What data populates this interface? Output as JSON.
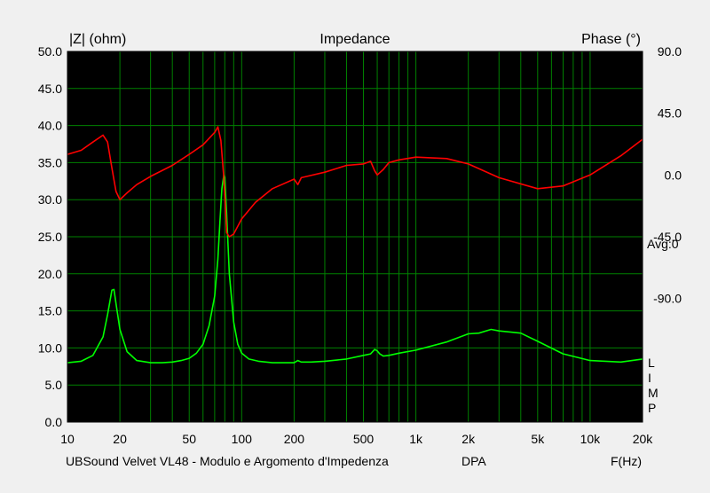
{
  "chart_data": {
    "type": "line",
    "title": "Impedance",
    "y_left_label": "|Z| (ohm)",
    "y_right_label": "Phase (°)",
    "x_label": "F(Hz)",
    "footer_caption": "UBSound Velvet VL48 - Modulo e Argomento d'Impedenza",
    "footer_tag": "DPA",
    "avg_text": "Avg:0",
    "side_letters": [
      "L",
      "I",
      "M",
      "P"
    ],
    "x_scale": "log",
    "xlim": [
      10,
      20000
    ],
    "ylim_left": [
      0,
      50
    ],
    "ylim_right": [
      -180,
      90
    ],
    "x_tick_values": [
      10,
      20,
      50,
      100,
      200,
      500,
      1000,
      2000,
      5000,
      10000,
      20000
    ],
    "x_tick_labels": [
      "10",
      "20",
      "50",
      "100",
      "200",
      "500",
      "1k",
      "2k",
      "5k",
      "10k",
      "20k"
    ],
    "y_left_ticks": [
      0,
      5,
      10,
      15,
      20,
      25,
      30,
      35,
      40,
      45,
      50
    ],
    "y_left_tick_labels": [
      "0.0",
      "5.0",
      "10.0",
      "15.0",
      "20.0",
      "25.0",
      "30.0",
      "35.0",
      "40.0",
      "45.0",
      "50.0"
    ],
    "y_right_ticks": [
      90,
      45,
      0,
      -45,
      -90
    ],
    "y_right_tick_labels": [
      "90.0",
      "45.0",
      "0.0",
      "-45.0",
      "-90.0"
    ],
    "grid": true,
    "colors": {
      "background": "#000000",
      "grid": "#008000",
      "impedance": "#00ff00",
      "phase": "#ff0000"
    },
    "series": [
      {
        "axis": "left",
        "color": "#00ff00",
        "x": [
          10,
          12,
          14,
          16,
          17,
          18,
          18.5,
          19,
          20,
          22,
          25,
          30,
          35,
          40,
          45,
          50,
          55,
          60,
          65,
          70,
          73,
          75,
          77,
          79,
          80,
          82,
          85,
          90,
          95,
          100,
          110,
          125,
          150,
          200,
          210,
          220,
          250,
          300,
          400,
          500,
          550,
          580,
          600,
          620,
          650,
          700,
          800,
          1000,
          1500,
          2000,
          2300,
          2700,
          3000,
          4000,
          5000,
          7000,
          10000,
          15000,
          20000
        ],
        "y": [
          8,
          8.2,
          9,
          11.5,
          14.5,
          17.8,
          17.9,
          16,
          12.5,
          9.5,
          8.3,
          8,
          8,
          8.1,
          8.3,
          8.6,
          9.3,
          10.5,
          13,
          17,
          22,
          27,
          31.5,
          33.3,
          33,
          28,
          20,
          13.5,
          10.5,
          9.3,
          8.5,
          8.2,
          8,
          8,
          8.3,
          8.1,
          8.1,
          8.2,
          8.5,
          9,
          9.2,
          9.8,
          9.6,
          9.2,
          8.9,
          9,
          9.3,
          9.7,
          10.8,
          11.9,
          12,
          12.5,
          12.3,
          12,
          10.9,
          9.2,
          8.3,
          8.1,
          8.5
        ]
      },
      {
        "axis": "right",
        "color": "#ff0000",
        "x": [
          10,
          12,
          14,
          16,
          17,
          18,
          19,
          20,
          22,
          25,
          30,
          40,
          50,
          60,
          70,
          73,
          76,
          79,
          82,
          85,
          90,
          100,
          120,
          150,
          200,
          210,
          220,
          300,
          400,
          500,
          550,
          580,
          600,
          650,
          700,
          800,
          1000,
          1500,
          2000,
          3000,
          5000,
          7000,
          10000,
          15000,
          20000
        ],
        "y": [
          15,
          18,
          24,
          29,
          24,
          5,
          -12,
          -18,
          -13,
          -7,
          -1,
          7,
          15,
          22,
          31,
          35,
          25,
          -2,
          -42,
          -45,
          -43,
          -32,
          -20,
          -10,
          -3,
          -7,
          -2,
          2,
          7,
          8,
          10,
          3,
          0,
          4,
          9,
          11,
          13,
          12,
          8,
          -2,
          -10,
          -8,
          0,
          14,
          26
        ]
      }
    ]
  }
}
